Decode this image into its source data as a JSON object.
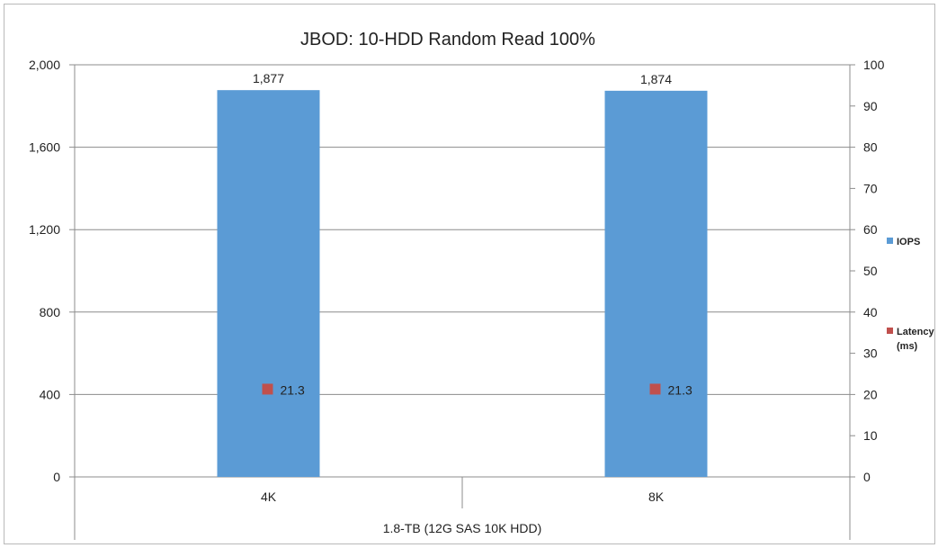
{
  "chart_data": {
    "type": "bar",
    "title": "JBOD: 10-HDD Random Read 100%",
    "categories": [
      "4K",
      "8K"
    ],
    "group_label": "1.8-TB (12G SAS 10K HDD)",
    "series": [
      {
        "name": "IOPS",
        "type": "bar",
        "axis": "left",
        "values": [
          1877,
          1874
        ],
        "value_labels": [
          "1,877",
          "1,874"
        ],
        "color": "#5b9bd5"
      },
      {
        "name": "Latency (ms)",
        "name_lines": [
          "Latency",
          "(ms)"
        ],
        "type": "scatter",
        "axis": "right",
        "values": [
          21.3,
          21.3
        ],
        "value_labels": [
          "21.3",
          "21.3"
        ],
        "color": "#c0504d"
      }
    ],
    "y_left": {
      "range": [
        0,
        2000
      ],
      "ticks": [
        0,
        400,
        800,
        1200,
        1600,
        2000
      ],
      "tick_labels": [
        "0",
        "400",
        "800",
        "1,200",
        "1,600",
        "2,000"
      ]
    },
    "y_right": {
      "range": [
        0,
        100
      ],
      "ticks": [
        0,
        10,
        20,
        30,
        40,
        50,
        60,
        70,
        80,
        90,
        100
      ],
      "tick_labels": [
        "0",
        "10",
        "20",
        "30",
        "40",
        "50",
        "60",
        "70",
        "80",
        "90",
        "100"
      ]
    },
    "grid": true,
    "legend_position": "right"
  }
}
